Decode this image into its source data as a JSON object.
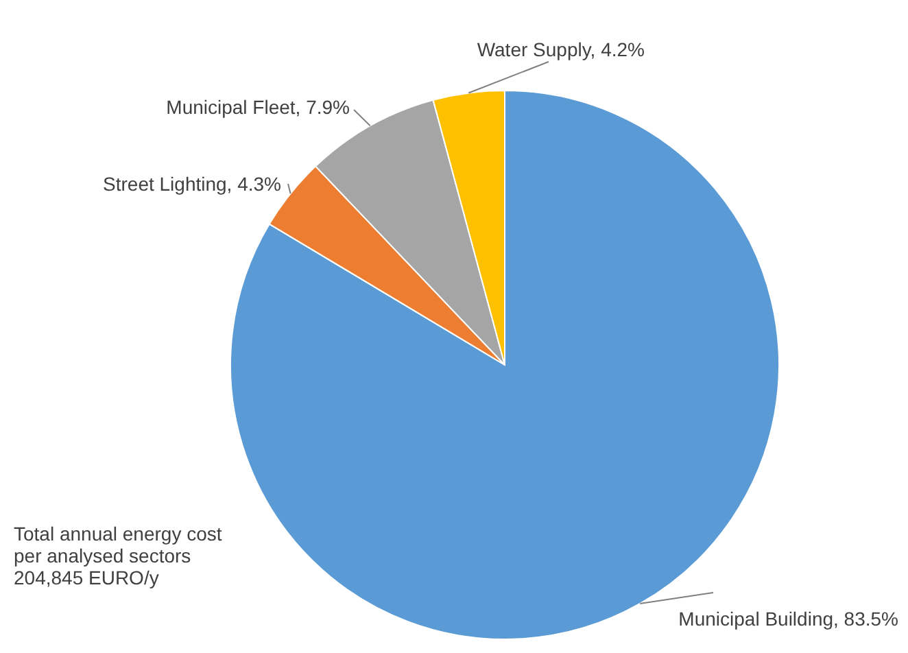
{
  "chart_data": {
    "type": "pie",
    "categories": [
      "Municipal Building",
      "Street Lighting",
      "Municipal Fleet",
      "Water Supply"
    ],
    "values": [
      83.5,
      4.3,
      7.9,
      4.2
    ],
    "value_labels": [
      "83.5%",
      "4.3%",
      "7.9%",
      "4.2%"
    ],
    "colors": [
      "#5b9bd5",
      "#ed7d31",
      "#a5a5a5",
      "#ffc000"
    ],
    "annotations": [
      "Total annual energy cost\nper analysed sectors\n204,845 EURO/y"
    ]
  }
}
